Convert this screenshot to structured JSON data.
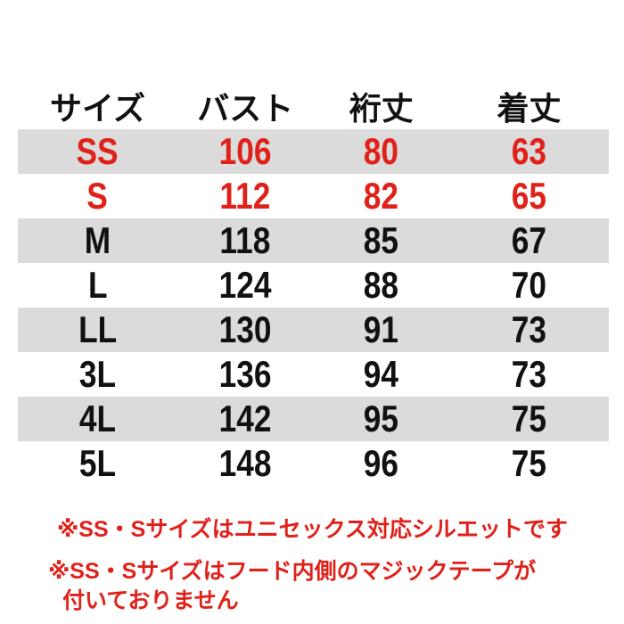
{
  "chart_data": {
    "type": "table",
    "columns": [
      "サイズ",
      "バスト",
      "裄丈",
      "着丈"
    ],
    "rows": [
      {
        "cells": [
          "SS",
          "106",
          "80",
          "63"
        ],
        "shaded": true,
        "accent": true
      },
      {
        "cells": [
          "S",
          "112",
          "82",
          "65"
        ],
        "shaded": false,
        "accent": true
      },
      {
        "cells": [
          "M",
          "118",
          "85",
          "67"
        ],
        "shaded": true,
        "accent": false
      },
      {
        "cells": [
          "L",
          "124",
          "88",
          "70"
        ],
        "shaded": false,
        "accent": false
      },
      {
        "cells": [
          "LL",
          "130",
          "91",
          "73"
        ],
        "shaded": true,
        "accent": false
      },
      {
        "cells": [
          "3L",
          "136",
          "94",
          "73"
        ],
        "shaded": false,
        "accent": false
      },
      {
        "cells": [
          "4L",
          "142",
          "95",
          "75"
        ],
        "shaded": true,
        "accent": false
      },
      {
        "cells": [
          "5L",
          "148",
          "96",
          "75"
        ],
        "shaded": false,
        "accent": false
      }
    ],
    "layout_hints": {
      "shaded_row_color": "#dbdbdb",
      "accent_text_color": "#e0211a",
      "header_text_color": "#111111",
      "grid": false
    }
  },
  "notes": [
    {
      "lines": [
        "※SS・Sサイズはユニセックス対応シルエットです"
      ]
    },
    {
      "lines": [
        "※SS・Sサイズはフード内側のマジックテープが",
        "付いておりません"
      ]
    }
  ],
  "colors": {
    "accent_red": "#e0211a",
    "row_shade": "#dbdbdb",
    "text_black": "#111111",
    "background": "#ffffff"
  }
}
